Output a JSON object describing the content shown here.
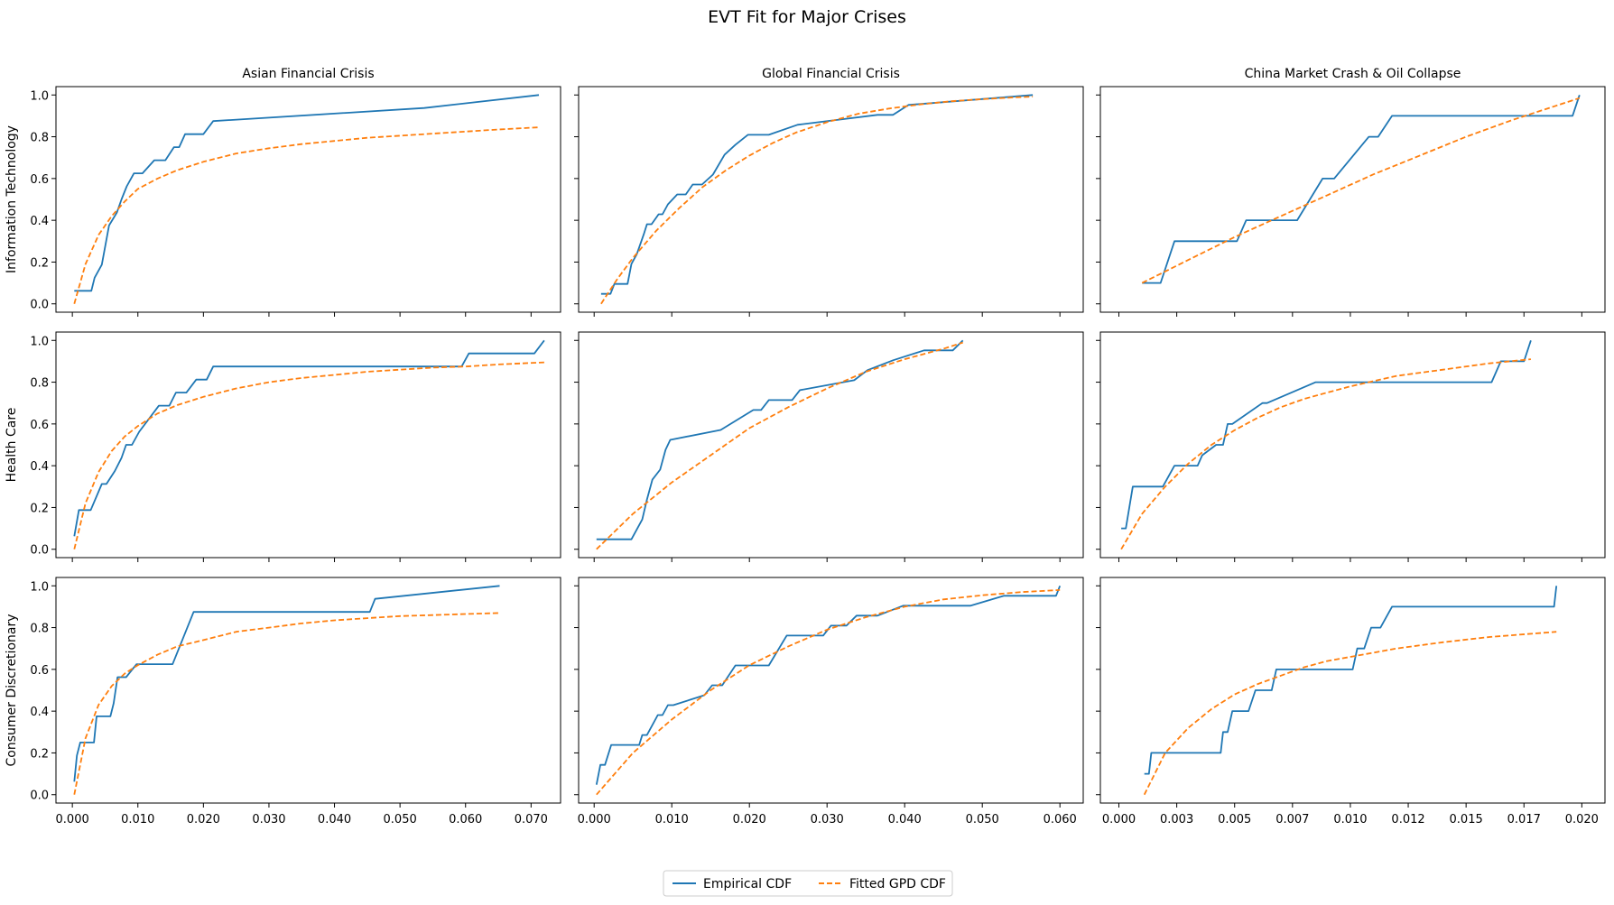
{
  "figure": {
    "title": "EVT Fit for Major Crises",
    "legend": {
      "entries": [
        {
          "label": "Empirical CDF",
          "color": "#1f77b4",
          "style": "solid"
        },
        {
          "label": "Fitted GPD CDF",
          "color": "#ff7f0e",
          "style": "dashed"
        }
      ],
      "placement": "bottom-center"
    }
  },
  "chart_data": {
    "type": "line",
    "grid": false,
    "columns": [
      "Asian Financial Crisis",
      "Global Financial Crisis",
      "China Market Crash & Oil Collapse"
    ],
    "rows": [
      "Information Technology",
      "Health Care",
      "Consumer Discretionary"
    ],
    "y_ticks": [
      "0.0",
      "0.2",
      "0.4",
      "0.6",
      "0.8",
      "1.0"
    ],
    "ylim": [
      -0.04,
      1.04
    ],
    "x_axes": [
      {
        "xlim": [
          -0.0025,
          0.0745
        ],
        "ticks": [
          0,
          0.01,
          0.02,
          0.03,
          0.04,
          0.05,
          0.06,
          0.07
        ],
        "tick_labels": [
          "0.000",
          "0.010",
          "0.020",
          "0.030",
          "0.040",
          "0.050",
          "0.060",
          "0.070"
        ]
      },
      {
        "xlim": [
          -0.002,
          0.063
        ],
        "ticks": [
          0,
          0.01,
          0.02,
          0.03,
          0.04,
          0.05,
          0.06
        ],
        "tick_labels": [
          "0.000",
          "0.010",
          "0.020",
          "0.030",
          "0.040",
          "0.050",
          "0.060"
        ]
      },
      {
        "xlim": [
          -0.0008,
          0.021
        ],
        "ticks": [
          0,
          0.0025,
          0.005,
          0.0075,
          0.01,
          0.0125,
          0.015,
          0.0175,
          0.02
        ],
        "tick_labels": [
          "0.000",
          "0.003",
          "0.005",
          "0.007",
          "0.010",
          "0.012",
          "0.015",
          "0.017",
          "0.020"
        ]
      }
    ],
    "panels": [
      {
        "row": 0,
        "col": 0,
        "series": [
          {
            "name": "Empirical CDF",
            "x": [
              0.0003,
              0.0029,
              0.0034,
              0.0045,
              0.0056,
              0.0068,
              0.0075,
              0.0083,
              0.0094,
              0.0107,
              0.0125,
              0.0142,
              0.0155,
              0.0163,
              0.0172,
              0.0182,
              0.02,
              0.0215,
              0.0537,
              0.0712
            ],
            "y": [
              0.0625,
              0.0625,
              0.125,
              0.1875,
              0.375,
              0.4375,
              0.5,
              0.5625,
              0.625,
              0.625,
              0.6875,
              0.6875,
              0.75,
              0.75,
              0.8125,
              0.8125,
              0.8125,
              0.875,
              0.9375,
              1.0
            ]
          },
          {
            "name": "Fitted GPD CDF",
            "x": [
              0.0003,
              0.002,
              0.004,
              0.006,
              0.008,
              0.01,
              0.013,
              0.016,
              0.02,
              0.025,
              0.03,
              0.035,
              0.04,
              0.045,
              0.05,
              0.055,
              0.06,
              0.065,
              0.0712
            ],
            "y": [
              0.0,
              0.19,
              0.33,
              0.42,
              0.49,
              0.55,
              0.6,
              0.64,
              0.68,
              0.72,
              0.745,
              0.765,
              0.78,
              0.795,
              0.805,
              0.815,
              0.825,
              0.835,
              0.845
            ]
          }
        ]
      },
      {
        "row": 0,
        "col": 1,
        "series": [
          {
            "name": "Empirical CDF",
            "x": [
              0.0009,
              0.0021,
              0.0026,
              0.0043,
              0.0048,
              0.0055,
              0.0064,
              0.0068,
              0.0074,
              0.0083,
              0.0088,
              0.0095,
              0.0107,
              0.0118,
              0.0127,
              0.0139,
              0.0153,
              0.0168,
              0.0182,
              0.0198,
              0.0225,
              0.0262,
              0.0365,
              0.0385,
              0.0405,
              0.0565
            ],
            "y": [
              0.0476,
              0.0476,
              0.0952,
              0.0952,
              0.1905,
              0.2381,
              0.3333,
              0.381,
              0.381,
              0.4286,
              0.4286,
              0.4762,
              0.5238,
              0.5238,
              0.5714,
              0.5714,
              0.619,
              0.7143,
              0.7619,
              0.8095,
              0.8095,
              0.8571,
              0.9048,
              0.9048,
              0.9524,
              1.0
            ]
          },
          {
            "name": "Fitted GPD CDF",
            "x": [
              0.0009,
              0.003,
              0.005,
              0.008,
              0.011,
              0.014,
              0.017,
              0.02,
              0.023,
              0.026,
              0.03,
              0.034,
              0.038,
              0.042,
              0.046,
              0.05,
              0.054,
              0.0565
            ],
            "y": [
              0.0,
              0.12,
              0.22,
              0.35,
              0.46,
              0.56,
              0.64,
              0.71,
              0.77,
              0.82,
              0.87,
              0.91,
              0.935,
              0.955,
              0.97,
              0.98,
              0.988,
              0.992
            ]
          }
        ]
      },
      {
        "row": 0,
        "col": 2,
        "series": [
          {
            "name": "Empirical CDF",
            "x": [
              0.001,
              0.0018,
              0.0024,
              0.0051,
              0.0055,
              0.0077,
              0.0088,
              0.0093,
              0.0108,
              0.0112,
              0.0118,
              0.0196,
              0.0199
            ],
            "y": [
              0.1,
              0.1,
              0.3,
              0.3,
              0.4,
              0.4,
              0.6,
              0.6,
              0.8,
              0.8,
              0.9,
              0.9,
              1.0
            ]
          },
          {
            "name": "Fitted GPD CDF",
            "x": [
              0.001,
              0.003,
              0.005,
              0.007,
              0.009,
              0.011,
              0.013,
              0.015,
              0.017,
              0.0199
            ],
            "y": [
              0.1,
              0.21,
              0.32,
              0.42,
              0.52,
              0.62,
              0.71,
              0.8,
              0.88,
              0.985
            ]
          }
        ]
      },
      {
        "row": 1,
        "col": 0,
        "series": [
          {
            "name": "Empirical CDF",
            "x": [
              0.0003,
              0.001,
              0.0028,
              0.0045,
              0.0052,
              0.0065,
              0.0075,
              0.0082,
              0.0091,
              0.0102,
              0.0117,
              0.0132,
              0.0148,
              0.0158,
              0.0174,
              0.0189,
              0.0205,
              0.0215,
              0.0594,
              0.0605,
              0.0705,
              0.072
            ],
            "y": [
              0.0625,
              0.1875,
              0.1875,
              0.3125,
              0.3125,
              0.375,
              0.4375,
              0.5,
              0.5,
              0.5625,
              0.625,
              0.6875,
              0.6875,
              0.75,
              0.75,
              0.8125,
              0.8125,
              0.875,
              0.875,
              0.9375,
              0.9375,
              1.0
            ]
          },
          {
            "name": "Fitted GPD CDF",
            "x": [
              0.0003,
              0.002,
              0.004,
              0.006,
              0.008,
              0.01,
              0.013,
              0.016,
              0.02,
              0.025,
              0.03,
              0.035,
              0.04,
              0.045,
              0.05,
              0.055,
              0.06,
              0.065,
              0.072
            ],
            "y": [
              0.0,
              0.22,
              0.37,
              0.47,
              0.54,
              0.59,
              0.65,
              0.69,
              0.73,
              0.77,
              0.8,
              0.82,
              0.835,
              0.85,
              0.86,
              0.87,
              0.875,
              0.885,
              0.895
            ]
          }
        ]
      },
      {
        "row": 1,
        "col": 1,
        "series": [
          {
            "name": "Empirical CDF",
            "x": [
              0.0003,
              0.0048,
              0.0055,
              0.0062,
              0.0068,
              0.0075,
              0.0085,
              0.0092,
              0.0098,
              0.0163,
              0.0205,
              0.0215,
              0.0225,
              0.0255,
              0.0265,
              0.0335,
              0.0352,
              0.0385,
              0.0425,
              0.0462,
              0.0475
            ],
            "y": [
              0.0476,
              0.0476,
              0.0952,
              0.1429,
              0.2381,
              0.3333,
              0.381,
              0.4762,
              0.5238,
              0.5714,
              0.6667,
              0.6667,
              0.7143,
              0.7143,
              0.7619,
              0.8095,
              0.8571,
              0.9048,
              0.9524,
              0.9524,
              1.0
            ]
          },
          {
            "name": "Fitted GPD CDF",
            "x": [
              0.0003,
              0.005,
              0.01,
              0.015,
              0.02,
              0.025,
              0.03,
              0.035,
              0.04,
              0.045,
              0.0475
            ],
            "y": [
              0.0,
              0.17,
              0.32,
              0.45,
              0.58,
              0.68,
              0.77,
              0.85,
              0.91,
              0.96,
              0.99
            ]
          }
        ]
      },
      {
        "row": 1,
        "col": 2,
        "series": [
          {
            "name": "Empirical CDF",
            "x": [
              0.0001,
              0.0003,
              0.0006,
              0.0019,
              0.0024,
              0.0034,
              0.0036,
              0.0042,
              0.0045,
              0.0047,
              0.0049,
              0.0062,
              0.0064,
              0.0085,
              0.0087,
              0.0161,
              0.0165,
              0.0175,
              0.0178
            ],
            "y": [
              0.1,
              0.1,
              0.3,
              0.3,
              0.4,
              0.4,
              0.45,
              0.5,
              0.5,
              0.6,
              0.6,
              0.7,
              0.7,
              0.8,
              0.8,
              0.8,
              0.9,
              0.9,
              1.0
            ]
          },
          {
            "name": "Fitted GPD CDF",
            "x": [
              0.0001,
              0.001,
              0.002,
              0.003,
              0.004,
              0.005,
              0.006,
              0.007,
              0.008,
              0.009,
              0.01,
              0.012,
              0.014,
              0.016,
              0.0178
            ],
            "y": [
              0.0,
              0.17,
              0.3,
              0.41,
              0.5,
              0.57,
              0.63,
              0.68,
              0.72,
              0.75,
              0.78,
              0.83,
              0.86,
              0.89,
              0.91
            ]
          }
        ]
      },
      {
        "row": 2,
        "col": 0,
        "series": [
          {
            "name": "Empirical CDF",
            "x": [
              0.0003,
              0.0007,
              0.0012,
              0.0033,
              0.0037,
              0.0058,
              0.0063,
              0.0069,
              0.0082,
              0.0098,
              0.0108,
              0.0153,
              0.0185,
              0.0454,
              0.0462,
              0.0652
            ],
            "y": [
              0.0625,
              0.1875,
              0.25,
              0.25,
              0.375,
              0.375,
              0.4375,
              0.5625,
              0.5625,
              0.625,
              0.625,
              0.625,
              0.875,
              0.875,
              0.9375,
              1.0
            ]
          },
          {
            "name": "Fitted GPD CDF",
            "x": [
              0.0003,
              0.002,
              0.004,
              0.006,
              0.008,
              0.01,
              0.013,
              0.016,
              0.02,
              0.025,
              0.03,
              0.035,
              0.04,
              0.045,
              0.05,
              0.055,
              0.06,
              0.0652
            ],
            "y": [
              0.0,
              0.27,
              0.43,
              0.52,
              0.58,
              0.62,
              0.67,
              0.71,
              0.74,
              0.78,
              0.8,
              0.82,
              0.835,
              0.845,
              0.855,
              0.86,
              0.865,
              0.87
            ]
          }
        ]
      },
      {
        "row": 2,
        "col": 1,
        "series": [
          {
            "name": "Empirical CDF",
            "x": [
              0.0003,
              0.0008,
              0.0014,
              0.0022,
              0.0058,
              0.0062,
              0.0068,
              0.0075,
              0.0082,
              0.0088,
              0.0095,
              0.0102,
              0.0142,
              0.0152,
              0.0165,
              0.0182,
              0.0225,
              0.0248,
              0.0295,
              0.0305,
              0.0325,
              0.0338,
              0.0365,
              0.0398,
              0.0485,
              0.0528,
              0.0595,
              0.06
            ],
            "y": [
              0.0476,
              0.1429,
              0.1429,
              0.2381,
              0.2381,
              0.2857,
              0.2857,
              0.3333,
              0.381,
              0.381,
              0.4286,
              0.4286,
              0.4762,
              0.5238,
              0.5238,
              0.619,
              0.619,
              0.7619,
              0.7619,
              0.8095,
              0.8095,
              0.8571,
              0.8571,
              0.9048,
              0.9048,
              0.9524,
              0.9524,
              1.0
            ]
          },
          {
            "name": "Fitted GPD CDF",
            "x": [
              0.0003,
              0.005,
              0.01,
              0.015,
              0.02,
              0.025,
              0.03,
              0.035,
              0.04,
              0.045,
              0.05,
              0.055,
              0.06
            ],
            "y": [
              0.0,
              0.2,
              0.36,
              0.5,
              0.62,
              0.71,
              0.79,
              0.85,
              0.9,
              0.935,
              0.955,
              0.97,
              0.98
            ]
          }
        ]
      },
      {
        "row": 2,
        "col": 2,
        "series": [
          {
            "name": "Empirical CDF",
            "x": [
              0.0011,
              0.0013,
              0.0014,
              0.0044,
              0.0045,
              0.0047,
              0.0049,
              0.0056,
              0.0059,
              0.0066,
              0.0068,
              0.0081,
              0.0101,
              0.0103,
              0.0106,
              0.0109,
              0.0113,
              0.0118,
              0.0188,
              0.0189
            ],
            "y": [
              0.1,
              0.1,
              0.2,
              0.2,
              0.3,
              0.3,
              0.4,
              0.4,
              0.5,
              0.5,
              0.6,
              0.6,
              0.6,
              0.7,
              0.7,
              0.8,
              0.8,
              0.9,
              0.9,
              1.0
            ]
          },
          {
            "name": "Fitted GPD CDF",
            "x": [
              0.0011,
              0.002,
              0.003,
              0.004,
              0.005,
              0.006,
              0.007,
              0.008,
              0.009,
              0.01,
              0.012,
              0.014,
              0.016,
              0.0189
            ],
            "y": [
              0.0,
              0.2,
              0.32,
              0.41,
              0.48,
              0.53,
              0.57,
              0.61,
              0.64,
              0.66,
              0.7,
              0.73,
              0.755,
              0.78
            ]
          }
        ]
      }
    ]
  }
}
